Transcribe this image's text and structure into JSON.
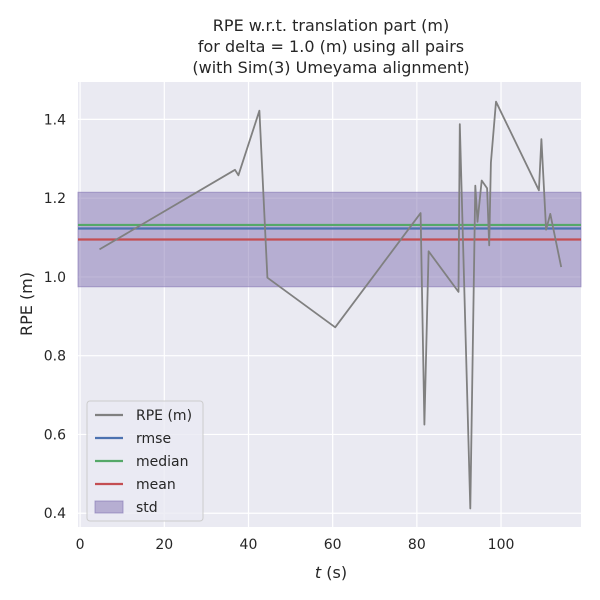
{
  "chart_data": {
    "type": "line",
    "title": [
      "RPE w.r.t. translation part (m)",
      "for delta = 1.0 (m) using all pairs",
      "(with Sim(3) Umeyama alignment)"
    ],
    "xlabel_prefix": "t",
    "xlabel_suffix": " (s)",
    "ylabel": "RPE (m)",
    "xlim": [
      -0.5,
      119
    ],
    "ylim": [
      0.365,
      1.495
    ],
    "xticks": [
      0,
      20,
      40,
      60,
      80,
      100
    ],
    "yticks": [
      0.4,
      0.6,
      0.8,
      1.0,
      1.2,
      1.4
    ],
    "xtick_labels": [
      "0",
      "20",
      "40",
      "60",
      "80",
      "100"
    ],
    "ytick_labels": [
      "0.4",
      "0.6",
      "0.8",
      "1.0",
      "1.2",
      "1.4"
    ],
    "grid": true,
    "legend_position": "lower-left",
    "series": [
      {
        "name": "RPE (m)",
        "color": "#808080",
        "x": [
          4.6,
          36.8,
          37.6,
          42.6,
          44.5,
          60.6,
          80.9,
          81.8,
          82.8,
          89.9,
          90.2,
          92.7,
          93.9,
          94.4,
          95.4,
          96.7,
          97.2,
          97.6,
          98.8,
          109.0,
          109.6,
          110.7,
          111.7,
          114.3
        ],
        "y": [
          1.07,
          1.272,
          1.258,
          1.422,
          0.998,
          0.872,
          1.162,
          0.625,
          1.065,
          0.962,
          1.388,
          0.412,
          1.232,
          1.14,
          1.245,
          1.225,
          1.08,
          1.29,
          1.445,
          1.22,
          1.35,
          1.12,
          1.16,
          1.025
        ]
      }
    ],
    "stats": {
      "rmse": 1.123,
      "median": 1.132,
      "mean": 1.095,
      "std_band": [
        0.975,
        1.215
      ]
    },
    "legend": [
      {
        "label": "RPE (m)",
        "kind": "line",
        "color": "#808080"
      },
      {
        "label": "rmse",
        "kind": "line",
        "color": "#4c72b0"
      },
      {
        "label": "median",
        "kind": "line",
        "color": "#55a868"
      },
      {
        "label": "mean",
        "kind": "line",
        "color": "#c44e52"
      },
      {
        "label": "std",
        "kind": "patch",
        "color": "#8172b2"
      }
    ],
    "colors": {
      "background": "#eaeaf2",
      "grid": "#ffffff",
      "rmse": "#4c72b0",
      "median": "#55a868",
      "mean": "#c44e52",
      "std": "#8172b2"
    }
  }
}
